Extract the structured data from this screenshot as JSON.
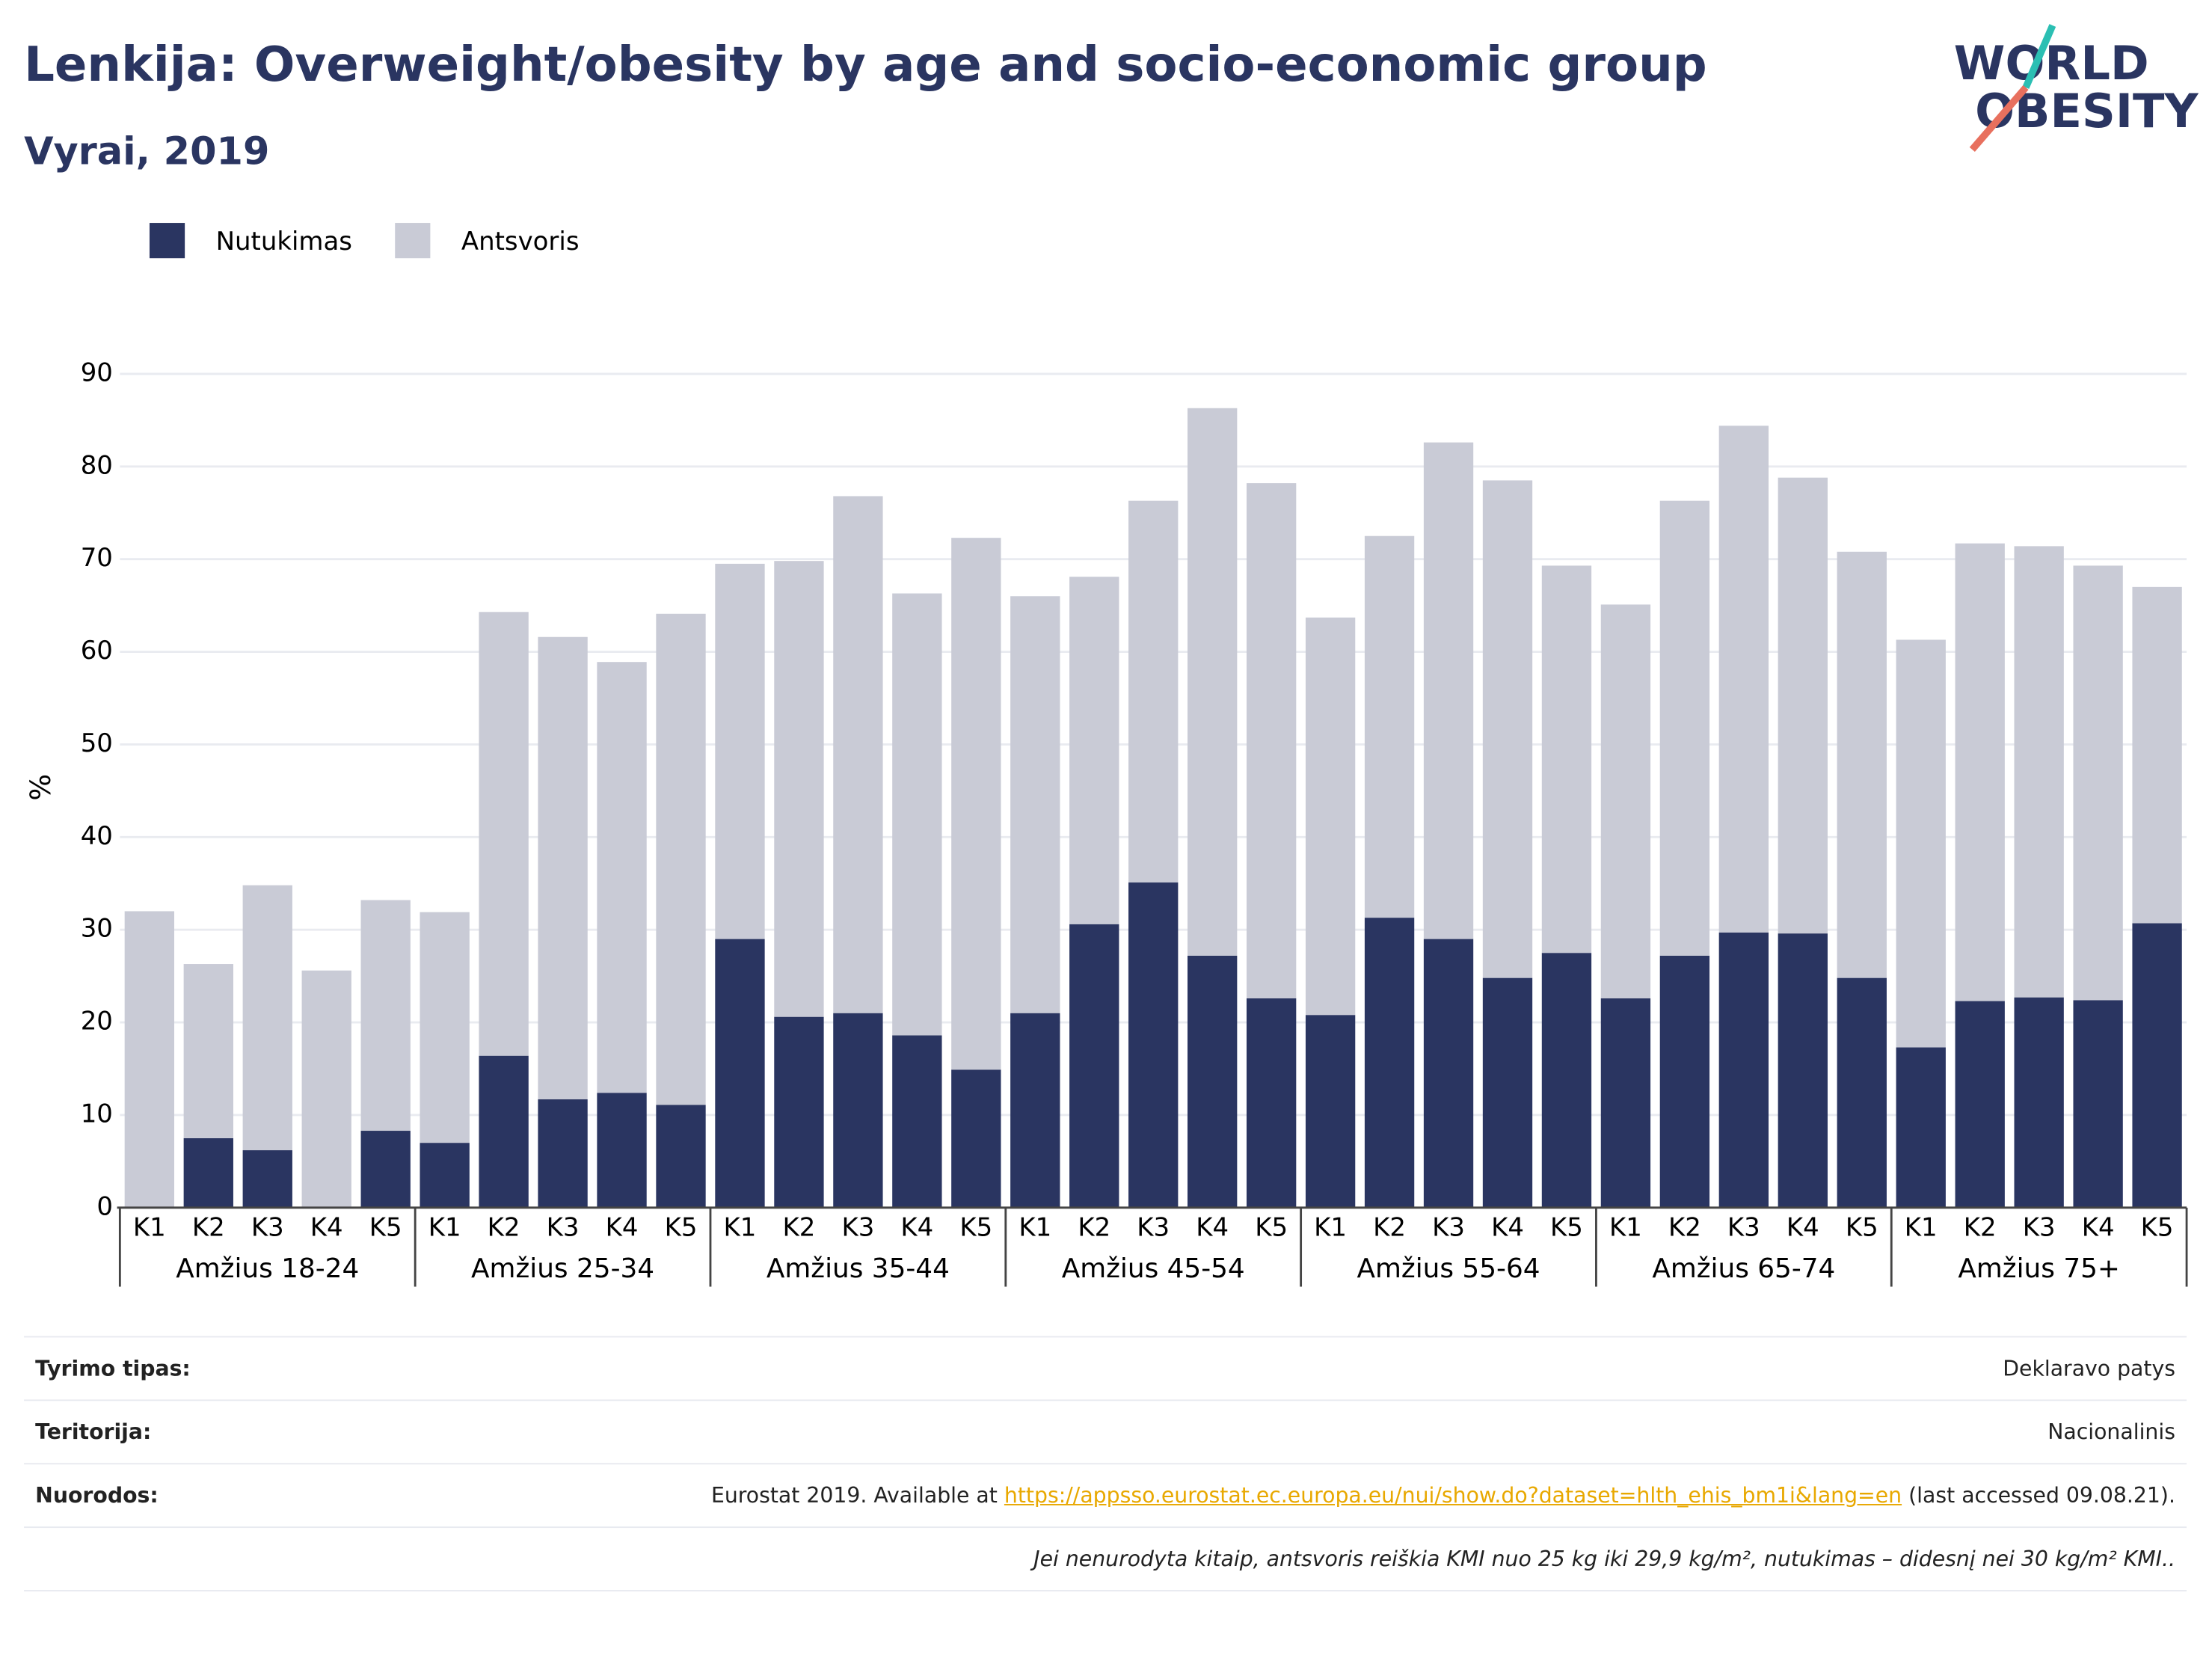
{
  "chart_data": {
    "type": "stacked_bar",
    "title": "Lenkija: Overweight/obesity by age and socio-economic group",
    "subtitle": "Vyrai, 2019",
    "y_label": "%",
    "categories": [
      "K1",
      "K2",
      "K3",
      "K4",
      "K5",
      "K1",
      "K2",
      "K3",
      "K4",
      "K5",
      "K1",
      "K2",
      "K3",
      "K4",
      "K5",
      "K1",
      "K2",
      "K3",
      "K4",
      "K5",
      "K1",
      "K2",
      "K3",
      "K4",
      "K5",
      "K1",
      "K2",
      "K3",
      "K4",
      "K5",
      "K1",
      "K2",
      "K3",
      "K4",
      "K5"
    ],
    "groups": [
      "Amžius 18-24",
      "Amžius 25-34",
      "Amžius 35-44",
      "Amžius 45-54",
      "Amžius 55-64",
      "Amžius 65-74",
      "Amžius 75+"
    ],
    "series": [
      {
        "name": "Nutukimas",
        "color": "#2a3561",
        "values": [
          0,
          7.5,
          6.2,
          0,
          8.3,
          7.0,
          16.4,
          11.7,
          12.4,
          11.1,
          29.0,
          20.6,
          21.0,
          18.6,
          14.9,
          21.0,
          30.6,
          35.1,
          27.2,
          22.6,
          20.8,
          31.3,
          29.0,
          24.8,
          27.5,
          22.6,
          27.2,
          29.7,
          29.6,
          24.8,
          17.3,
          22.3,
          22.7,
          22.4,
          30.7
        ]
      },
      {
        "name": "Antsvoris",
        "color": "#c9cbd6",
        "values": [
          32.0,
          18.8,
          28.6,
          25.6,
          24.9,
          24.9,
          47.9,
          49.9,
          46.5,
          53.0,
          40.5,
          49.2,
          55.8,
          47.7,
          57.4,
          45.0,
          37.5,
          41.2,
          59.1,
          55.6,
          42.9,
          41.2,
          53.6,
          53.7,
          41.8,
          42.5,
          49.1,
          54.7,
          49.2,
          46.0,
          44.0,
          49.4,
          48.7,
          46.9,
          36.3
        ]
      }
    ],
    "ylim": [
      0,
      90
    ],
    "yticks": [
      0,
      10,
      20,
      30,
      40,
      50,
      60,
      70,
      80,
      90
    ],
    "grid": true,
    "legend": "top-left"
  },
  "logo": [
    "WORLD",
    "OBESITY"
  ],
  "footer": {
    "rows": [
      {
        "label": "Tyrimo tipas:",
        "value": "Deklaravo patys"
      },
      {
        "label": "Teritorija:",
        "value": "Nacionalinis"
      },
      {
        "label": "Nuorodos:",
        "value": "Eurostat 2019. Available at ",
        "link": "https://appsso.eurostat.ec.europa.eu/nui/show.do?dataset=hlth_ehis_bm1i&lang=en",
        "value_after": " (last accessed 09.08.21)."
      }
    ],
    "note": "Jei nenurodyta kitaip, antsvoris reiškia KMI nuo 25 kg iki 29,9 kg/m², nutukimas – didesnį nei 30 kg/m² KMI.."
  }
}
